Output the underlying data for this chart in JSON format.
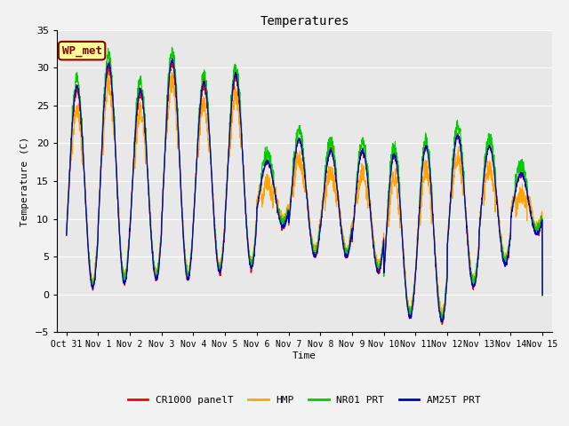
{
  "title": "Temperatures",
  "ylabel": "Temperature (C)",
  "xlabel": "Time",
  "annotation_text": "WP_met",
  "annotation_color": "#8B0000",
  "annotation_bg": "#FFFF99",
  "annotation_border": "#8B0000",
  "ylim": [
    -5,
    35
  ],
  "yticks": [
    -5,
    0,
    5,
    10,
    15,
    20,
    25,
    30,
    35
  ],
  "xtick_labels": [
    "Oct 31",
    "Nov 1",
    "Nov 2",
    "Nov 3",
    "Nov 4",
    "Nov 5",
    "Nov 6",
    "Nov 7",
    "Nov 8",
    "Nov 9",
    "Nov 10",
    "Nov 11",
    "Nov 12",
    "Nov 13",
    "Nov 14",
    "Nov 15"
  ],
  "series": {
    "CR1000 panelT": {
      "color": "#FF0000",
      "lw": 0.8,
      "zorder": 3
    },
    "HMP": {
      "color": "#FFA500",
      "lw": 0.8,
      "zorder": 2
    },
    "NR01 PRT": {
      "color": "#00CC00",
      "lw": 0.8,
      "zorder": 4
    },
    "AM25T PRT": {
      "color": "#0000CD",
      "lw": 0.9,
      "zorder": 5
    }
  },
  "bg_color": "#E8E8E8",
  "grid_color": "#FFFFFF",
  "fig_bg": "#F2F2F2",
  "day_mins": [
    1.0,
    1.5,
    2.0,
    2.0,
    3.0,
    3.5,
    9.0,
    5.0,
    5.0,
    3.0,
    -3.0,
    -3.5,
    1.0,
    4.0,
    8.0
  ],
  "day_maxs": [
    27.5,
    30.5,
    27.0,
    31.0,
    28.0,
    29.0,
    17.5,
    20.5,
    19.0,
    19.0,
    18.5,
    19.5,
    21.0,
    19.5,
    16.0
  ]
}
